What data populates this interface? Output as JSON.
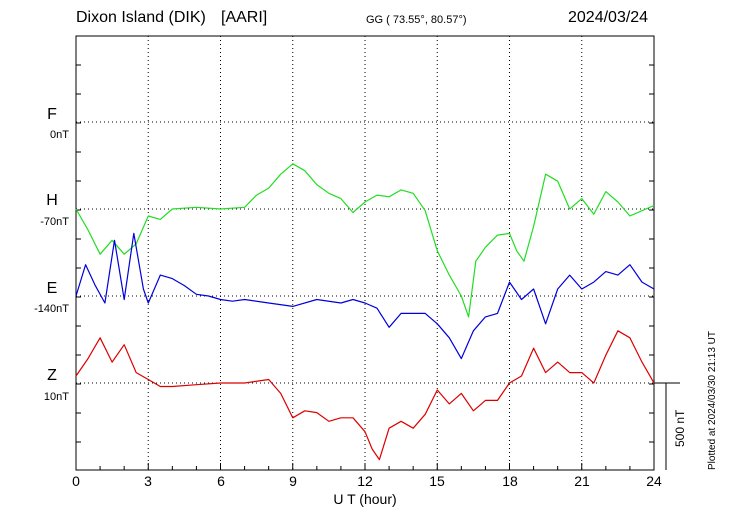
{
  "header": {
    "station": "Dixon Island (DIK)",
    "org": "[AARI]",
    "coords": "GG ( 73.55°,  80.57°)",
    "date": "2024/03/24"
  },
  "plotted_note": "Plotted at 2024/03/30 21:13 UT",
  "chart_data": {
    "type": "line",
    "title": "Dixon Island (DIK) [AARI] 2024/03/24",
    "xlabel": "U T (hour)",
    "xlim": [
      0,
      24
    ],
    "xticks": [
      "0",
      "3",
      "6",
      "9",
      "12",
      "15",
      "18",
      "21",
      "24"
    ],
    "scale_bar_label": "500 nT",
    "scale_bar_nT": 500,
    "grid": true,
    "series": [
      {
        "name": "F",
        "offset_label": "0nT",
        "color": "#f0b400",
        "x": [],
        "values": []
      },
      {
        "name": "H",
        "offset_label": "-70nT",
        "color": "#22dd22",
        "x": [
          0,
          0.5,
          1,
          1.5,
          2,
          2.5,
          3,
          3.5,
          4,
          5,
          6,
          7,
          7.5,
          8,
          8.5,
          9,
          9.5,
          10,
          10.5,
          11,
          11.5,
          12,
          12.5,
          13,
          13.5,
          14,
          14.5,
          15,
          15.5,
          16,
          16.3,
          16.6,
          17,
          17.5,
          18,
          18.3,
          18.6,
          19,
          19.5,
          20,
          20.5,
          21,
          21.5,
          22,
          22.5,
          23,
          23.5,
          24
        ],
        "values": [
          0,
          -120,
          -260,
          -180,
          -260,
          -200,
          -40,
          -60,
          0,
          10,
          0,
          10,
          80,
          120,
          200,
          260,
          220,
          140,
          90,
          60,
          -20,
          40,
          80,
          70,
          110,
          90,
          -10,
          -240,
          -380,
          -500,
          -620,
          -300,
          -220,
          -150,
          -140,
          -240,
          -300,
          -100,
          200,
          160,
          0,
          60,
          -30,
          100,
          40,
          -40,
          -10,
          20
        ]
      },
      {
        "name": "E",
        "offset_label": "-140nT",
        "color": "#0000dd",
        "x": [
          0,
          0.4,
          0.8,
          1.2,
          1.6,
          2,
          2.4,
          2.8,
          3,
          3.5,
          4,
          4.5,
          5,
          5.5,
          6,
          6.5,
          7,
          8,
          9,
          10,
          11,
          11.5,
          12,
          12.5,
          13,
          13.5,
          14,
          14.5,
          15,
          15.5,
          16,
          16.5,
          17,
          17.5,
          18,
          18.5,
          19,
          19.5,
          20,
          20.5,
          21,
          21.5,
          22,
          22.5,
          23,
          23.5,
          24
        ],
        "values": [
          0,
          180,
          60,
          -40,
          320,
          -20,
          360,
          40,
          -40,
          120,
          100,
          60,
          10,
          0,
          -20,
          -30,
          -20,
          -40,
          -60,
          -20,
          -40,
          -20,
          -40,
          -70,
          -180,
          -100,
          -100,
          -100,
          -160,
          -240,
          -360,
          -200,
          -120,
          -100,
          80,
          -20,
          40,
          -160,
          40,
          120,
          40,
          80,
          140,
          120,
          180,
          80,
          40
        ]
      },
      {
        "name": "Z",
        "offset_label": "10nT",
        "color": "#dd0000",
        "x": [
          0,
          0.5,
          1,
          1.5,
          2,
          2.5,
          3,
          3.5,
          4,
          5,
          6,
          7,
          8,
          8.5,
          9,
          9.5,
          10,
          10.5,
          11,
          11.5,
          12,
          12.3,
          12.6,
          13,
          13.5,
          14,
          14.5,
          15,
          15.5,
          16,
          16.5,
          17,
          17.5,
          18,
          18.5,
          19,
          19.5,
          20,
          20.5,
          21,
          21.5,
          22,
          22.5,
          23,
          23.5,
          24
        ],
        "values": [
          40,
          140,
          260,
          120,
          220,
          60,
          20,
          -20,
          -20,
          -10,
          0,
          0,
          20,
          -60,
          -200,
          -160,
          -170,
          -220,
          -200,
          -200,
          -280,
          -380,
          -440,
          -260,
          -220,
          -260,
          -180,
          -40,
          -120,
          -60,
          -160,
          -100,
          -100,
          0,
          40,
          200,
          60,
          120,
          60,
          60,
          0,
          160,
          300,
          260,
          120,
          0
        ]
      }
    ]
  }
}
